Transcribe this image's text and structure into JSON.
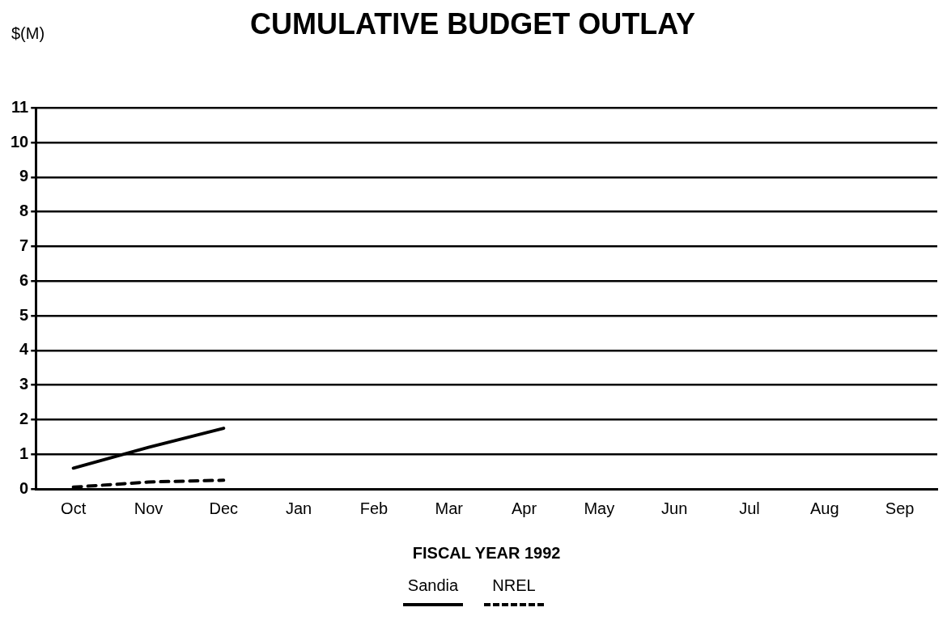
{
  "chart_data": {
    "type": "line",
    "title": "CUMULATIVE BUDGET OUTLAY",
    "ylabel": "$(M)",
    "xlabel": "FISCAL YEAR 1992",
    "categories": [
      "Oct",
      "Nov",
      "Dec",
      "Jan",
      "Feb",
      "Mar",
      "Apr",
      "May",
      "Jun",
      "Jul",
      "Aug",
      "Sep"
    ],
    "series": [
      {
        "name": "Sandia",
        "color": "#000000",
        "line_style": "solid",
        "values": [
          0.6,
          1.2,
          1.75,
          null,
          null,
          null,
          null,
          null,
          null,
          null,
          null,
          null
        ]
      },
      {
        "name": "NREL",
        "color": "#000000",
        "line_style": "dashed",
        "values": [
          0.05,
          0.2,
          0.25,
          null,
          null,
          null,
          null,
          null,
          null,
          null,
          null,
          null
        ]
      }
    ],
    "ylim": [
      0,
      11
    ],
    "yticks": [
      0,
      1,
      2,
      3,
      4,
      5,
      6,
      7,
      8,
      9,
      10,
      11
    ],
    "grid": "y",
    "legend": "bottom",
    "marker": "none"
  }
}
